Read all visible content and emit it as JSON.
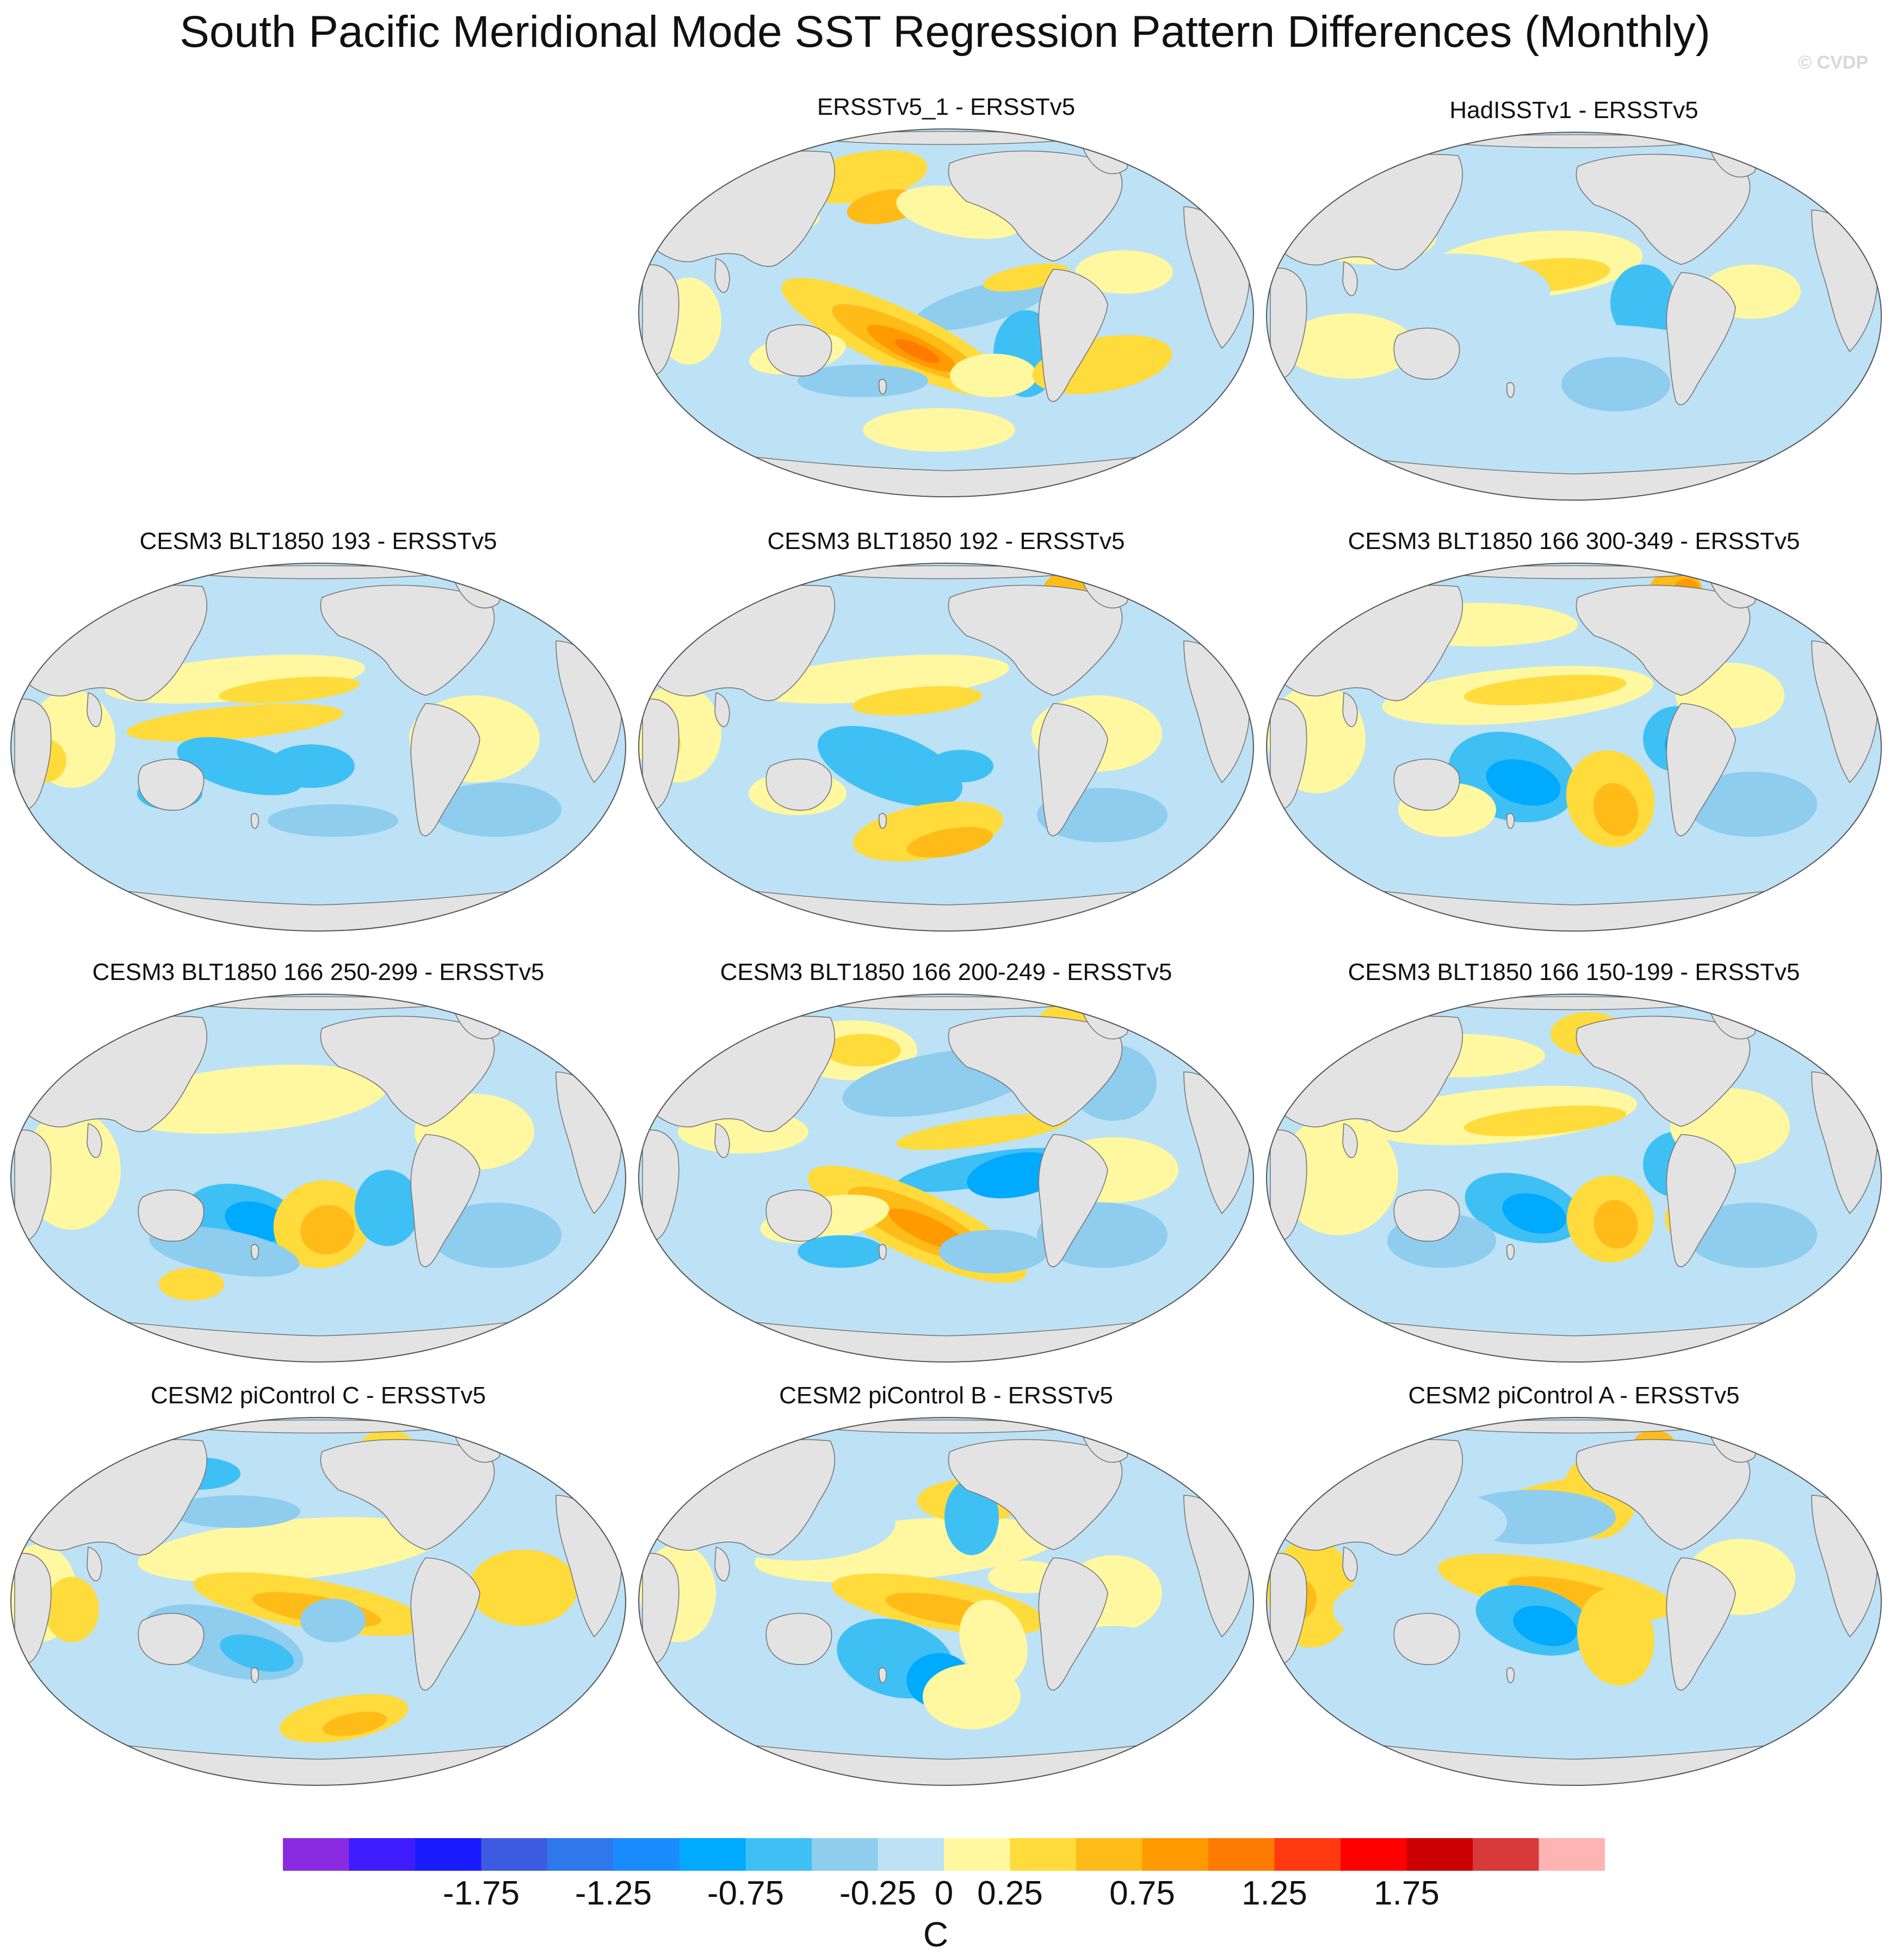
{
  "title": "South Pacific Meridional Mode SST Regression Pattern Differences (Monthly)",
  "watermark": "© CVDP",
  "colors": {
    "land": "#e3e3e3",
    "coast": "#777777",
    "levels": [
      "#8a2be2",
      "#3e1cff",
      "#1a1aff",
      "#3d5be0",
      "#2e78ec",
      "#1a8cff",
      "#00aaff",
      "#3fc0f5",
      "#8ecdee",
      "#bde2f5",
      "#fff8a0",
      "#ffdb3c",
      "#ffbb18",
      "#ff9a00",
      "#ff7a00",
      "#ff3a10",
      "#ff0000",
      "#cc0000",
      "#d83a3a",
      "#ffb4b4"
    ]
  },
  "chart_data": {
    "type": "contour-map",
    "units": "C",
    "colorbar": {
      "levels": [
        -2.0,
        -1.75,
        -1.5,
        -1.25,
        -1.0,
        -0.75,
        -0.5,
        -0.25,
        0,
        0.25,
        0.5,
        0.75,
        1.0,
        1.25,
        1.5,
        1.75,
        2.0
      ],
      "tick_labels": [
        "-1.75",
        "-1.25",
        "-0.75",
        "-0.25",
        "0",
        "0.25",
        "0.75",
        "1.25",
        "1.75"
      ],
      "tick_values": [
        -1.75,
        -1.25,
        -0.75,
        -0.25,
        0,
        0.25,
        0.75,
        1.25,
        1.75
      ],
      "label": "C",
      "range": [
        -2.5,
        2.5
      ]
    },
    "panels": [
      {
        "title": "ERSSTv5_1 - ERSSTv5",
        "pattern": "classic"
      },
      {
        "title": "HadISSTv1 - ERSSTv5",
        "pattern": "had"
      },
      {
        "title": "CESM3 BLT1850 193 - ERSSTv5",
        "pattern": "coolS"
      },
      {
        "title": "CESM3 BLT1850 192 - ERSSTv5",
        "pattern": "coolS2"
      },
      {
        "title": "CESM3 BLT1850 166 300-349 - ERSSTv5",
        "pattern": "dipole"
      },
      {
        "title": "CESM3 BLT1850 166 250-299 - ERSSTv5",
        "pattern": "dipole2"
      },
      {
        "title": "CESM3 BLT1850 166 200-249 - ERSSTv5",
        "pattern": "classic2"
      },
      {
        "title": "CESM3 BLT1850 166 150-199 - ERSSTv5",
        "pattern": "dipole3"
      },
      {
        "title": "CESM2 piControl C - ERSSTv5",
        "pattern": "warmC"
      },
      {
        "title": "CESM2 piControl B - ERSSTv5",
        "pattern": "warmB"
      },
      {
        "title": "CESM2 piControl A - ERSSTv5",
        "pattern": "warmA"
      }
    ]
  }
}
